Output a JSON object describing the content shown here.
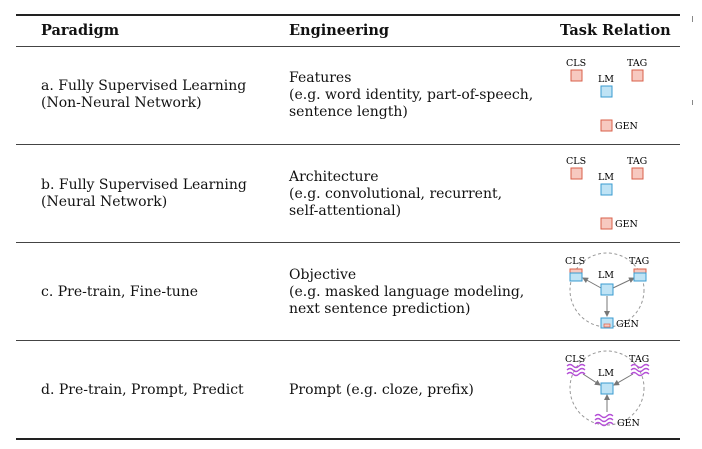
{
  "header": {
    "paradigm": "Paradigm",
    "engineering": "Engineering",
    "task_relation": "Task Relation"
  },
  "rows": [
    {
      "paradigm_line1": "a. Fully Supervised Learning",
      "paradigm_line2": "(Non-Neural Network)",
      "eng_line1": "Features",
      "eng_line2": "(e.g. word identity, part-of-speech,",
      "eng_line3": "sentence length)"
    },
    {
      "paradigm_line1": "b. Fully Supervised Learning",
      "paradigm_line2": "(Neural Network)",
      "eng_line1": "Architecture",
      "eng_line2": "(e.g. convolutional, recurrent,",
      "eng_line3": "self-attentional)"
    },
    {
      "paradigm_line1": "c. Pre-train, Fine-tune",
      "eng_line1": "Objective",
      "eng_line2": "(e.g. masked language modeling,",
      "eng_line3": "next sentence prediction)"
    },
    {
      "paradigm_line1": "d. Pre-train, Prompt, Predict",
      "eng_line1": "Prompt (e.g. cloze, prefix)"
    }
  ],
  "diagram_labels": {
    "cls": "CLS",
    "tag": "TAG",
    "lm": "LM",
    "gen": "GEN"
  },
  "colors": {
    "task_fill": "#f7c9c0",
    "task_stroke": "#d9604a",
    "lm_fill": "#bfe3f5",
    "lm_stroke": "#3a9bd0",
    "prompt": "#b44fd6"
  }
}
